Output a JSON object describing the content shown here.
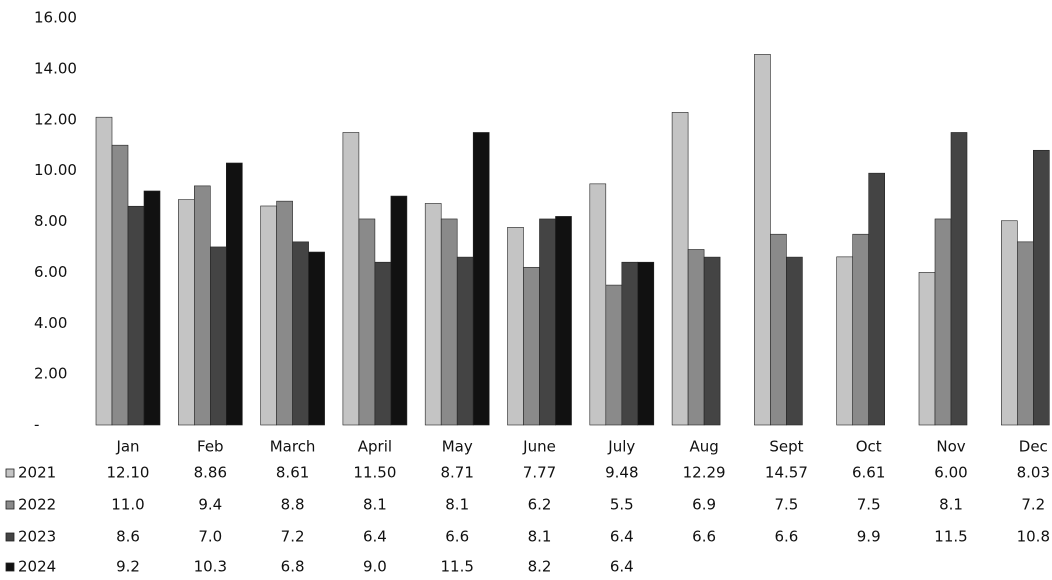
{
  "chart_data": {
    "type": "bar",
    "categories": [
      "Jan",
      "Feb",
      "March",
      "April",
      "May",
      "June",
      "July",
      "Aug",
      "Sept",
      "Oct",
      "Nov",
      "Dec"
    ],
    "series": [
      {
        "name": "2021",
        "color": "#c4c4c4",
        "values": [
          12.1,
          8.86,
          8.61,
          11.5,
          8.71,
          7.77,
          9.48,
          12.29,
          14.57,
          6.61,
          6.0,
          8.03
        ],
        "value_labels": [
          "12.10",
          "8.86",
          "8.61",
          "11.50",
          "8.71",
          "7.77",
          "9.48",
          "12.29",
          "14.57",
          "6.61",
          "6.00",
          "8.03"
        ]
      },
      {
        "name": "2022",
        "color": "#8a8a8a",
        "values": [
          11.0,
          9.4,
          8.8,
          8.1,
          8.1,
          6.2,
          5.5,
          6.9,
          7.5,
          7.5,
          8.1,
          7.2
        ],
        "value_labels": [
          "11.0",
          "9.4",
          "8.8",
          "8.1",
          "8.1",
          "6.2",
          "5.5",
          "6.9",
          "7.5",
          "7.5",
          "8.1",
          "7.2"
        ]
      },
      {
        "name": "2023",
        "color": "#444444",
        "values": [
          8.6,
          7.0,
          7.2,
          6.4,
          6.6,
          8.1,
          6.4,
          6.6,
          6.6,
          9.9,
          11.5,
          10.8
        ],
        "value_labels": [
          "8.6",
          "7.0",
          "7.2",
          "6.4",
          "6.6",
          "8.1",
          "6.4",
          "6.6",
          "6.6",
          "9.9",
          "11.5",
          "10.8"
        ]
      },
      {
        "name": "2024",
        "color": "#111111",
        "values": [
          9.2,
          10.3,
          6.8,
          9.0,
          11.5,
          8.2,
          6.4,
          null,
          null,
          null,
          null,
          null
        ],
        "value_labels": [
          "9.2",
          "10.3",
          "6.8",
          "9.0",
          "11.5",
          "8.2",
          "6.4",
          null,
          null,
          null,
          null,
          null
        ]
      }
    ],
    "ylim": [
      0,
      16
    ],
    "yticks": [
      {
        "value": 0,
        "label": "-"
      },
      {
        "value": 2,
        "label": "2.00"
      },
      {
        "value": 4,
        "label": "4.00"
      },
      {
        "value": 6,
        "label": "6.00"
      },
      {
        "value": 8,
        "label": "8.00"
      },
      {
        "value": 10,
        "label": "10.00"
      },
      {
        "value": 12,
        "label": "12.00"
      },
      {
        "value": 14,
        "label": "14.00"
      },
      {
        "value": 16,
        "label": "16.00"
      }
    ],
    "grid": false
  }
}
